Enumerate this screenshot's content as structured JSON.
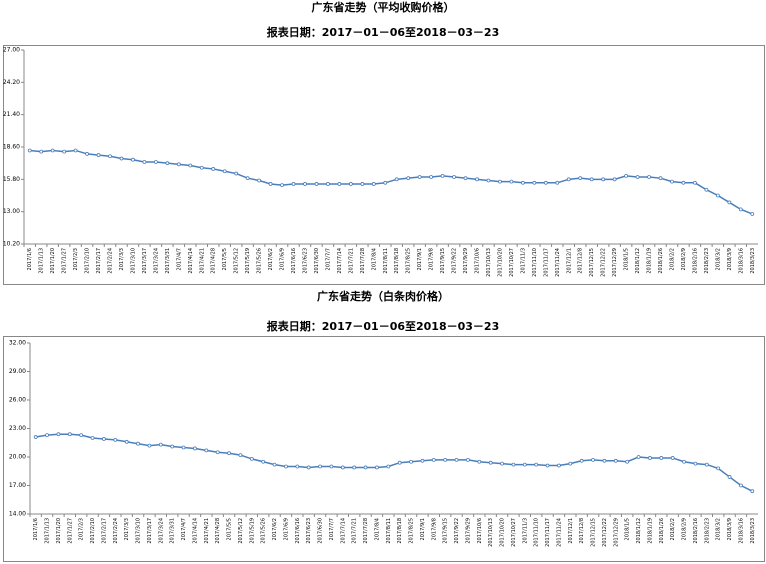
{
  "chart_data": [
    {
      "type": "line",
      "title": "广东省走势（平均收购价格）",
      "subtitle": "报表日期：2017－01－06至2018－03－23",
      "color": "#4a7ebb",
      "categories": [
        "2017/1/6",
        "2017/1/13",
        "2017/1/20",
        "2017/1/27",
        "2017/2/3",
        "2017/2/10",
        "2017/2/17",
        "2017/2/24",
        "2017/3/3",
        "2017/3/10",
        "2017/3/17",
        "2017/3/24",
        "2017/3/31",
        "2017/4/7",
        "2017/4/14",
        "2017/4/21",
        "2017/4/28",
        "2017/5/5",
        "2017/5/12",
        "2017/5/19",
        "2017/5/26",
        "2017/6/2",
        "2017/6/9",
        "2017/6/16",
        "2017/6/23",
        "2017/6/30",
        "2017/7/7",
        "2017/7/14",
        "2017/7/21",
        "2017/7/28",
        "2017/8/4",
        "2017/8/11",
        "2017/8/18",
        "2017/8/25",
        "2017/9/1",
        "2017/9/8",
        "2017/9/15",
        "2017/9/22",
        "2017/9/29",
        "2017/10/6",
        "2017/10/13",
        "2017/10/20",
        "2017/10/27",
        "2017/11/3",
        "2017/11/10",
        "2017/11/17",
        "2017/11/24",
        "2017/12/1",
        "2017/12/8",
        "2017/12/15",
        "2017/12/22",
        "2017/12/29",
        "2018/1/5",
        "2018/1/12",
        "2018/1/19",
        "2018/1/26",
        "2018/2/2",
        "2018/2/9",
        "2018/2/16",
        "2018/2/23",
        "2018/3/2",
        "2018/3/9",
        "2018/3/16",
        "2018/3/23"
      ],
      "values": [
        18.3,
        18.2,
        18.3,
        18.2,
        18.3,
        18.0,
        17.9,
        17.8,
        17.6,
        17.5,
        17.3,
        17.3,
        17.2,
        17.1,
        17.0,
        16.8,
        16.7,
        16.5,
        16.3,
        15.9,
        15.7,
        15.4,
        15.3,
        15.4,
        15.4,
        15.4,
        15.4,
        15.4,
        15.4,
        15.4,
        15.4,
        15.5,
        15.8,
        15.9,
        16.0,
        16.0,
        16.1,
        16.0,
        15.9,
        15.8,
        15.7,
        15.6,
        15.6,
        15.5,
        15.5,
        15.5,
        15.5,
        15.8,
        15.9,
        15.8,
        15.8,
        15.8,
        16.1,
        16.0,
        16.0,
        15.9,
        15.6,
        15.5,
        15.5,
        14.9,
        14.4,
        13.8,
        13.2,
        12.8
      ],
      "ylim": [
        10.2,
        27.0
      ],
      "yticks": [
        {
          "value": 10.2,
          "label": "10.20"
        },
        {
          "value": 13.0,
          "label": "13.00"
        },
        {
          "value": 15.8,
          "label": "15.80"
        },
        {
          "value": 18.6,
          "label": "18.60"
        },
        {
          "value": 21.4,
          "label": "21.40"
        },
        {
          "value": 24.2,
          "label": "24.20"
        },
        {
          "value": 27.0,
          "label": "27.00"
        }
      ]
    },
    {
      "type": "line",
      "title": "广东省走势（白条肉价格）",
      "subtitle": "报表日期：2017－01－06至2018－03－23",
      "color": "#4a7ebb",
      "categories": [
        "2017/1/6",
        "2017/1/13",
        "2017/1/20",
        "2017/1/27",
        "2017/2/3",
        "2017/2/10",
        "2017/2/17",
        "2017/2/24",
        "2017/3/3",
        "2017/3/10",
        "2017/3/17",
        "2017/3/24",
        "2017/3/31",
        "2017/4/7",
        "2017/4/14",
        "2017/4/21",
        "2017/4/28",
        "2017/5/5",
        "2017/5/12",
        "2017/5/19",
        "2017/5/26",
        "2017/6/2",
        "2017/6/9",
        "2017/6/16",
        "2017/6/23",
        "2017/6/30",
        "2017/7/7",
        "2017/7/14",
        "2017/7/21",
        "2017/7/28",
        "2017/8/4",
        "2017/8/11",
        "2017/8/18",
        "2017/8/25",
        "2017/9/1",
        "2017/9/8",
        "2017/9/15",
        "2017/9/22",
        "2017/9/29",
        "2017/10/6",
        "2017/10/13",
        "2017/10/20",
        "2017/10/27",
        "2017/11/3",
        "2017/11/10",
        "2017/11/17",
        "2017/11/24",
        "2017/12/1",
        "2017/12/8",
        "2017/12/15",
        "2017/12/22",
        "2017/12/29",
        "2018/1/5",
        "2018/1/12",
        "2018/1/19",
        "2018/1/26",
        "2018/2/2",
        "2018/2/9",
        "2018/2/16",
        "2018/2/23",
        "2018/3/2",
        "2018/3/9",
        "2018/3/16",
        "2018/3/23"
      ],
      "values": [
        22.1,
        22.3,
        22.4,
        22.4,
        22.3,
        22.0,
        21.9,
        21.8,
        21.6,
        21.4,
        21.2,
        21.3,
        21.1,
        21.0,
        20.9,
        20.7,
        20.5,
        20.4,
        20.2,
        19.8,
        19.5,
        19.2,
        19.0,
        19.0,
        18.9,
        19.0,
        19.0,
        18.9,
        18.9,
        18.9,
        18.9,
        19.0,
        19.4,
        19.5,
        19.6,
        19.7,
        19.7,
        19.7,
        19.7,
        19.5,
        19.4,
        19.3,
        19.2,
        19.2,
        19.2,
        19.1,
        19.1,
        19.3,
        19.6,
        19.7,
        19.6,
        19.6,
        19.5,
        20.0,
        19.9,
        19.9,
        19.9,
        19.5,
        19.3,
        19.2,
        18.8,
        17.9,
        17.0,
        16.4
      ],
      "ylim": [
        14.0,
        32.0
      ],
      "yticks": [
        {
          "value": 14.0,
          "label": "14.00"
        },
        {
          "value": 17.0,
          "label": "17.00"
        },
        {
          "value": 20.0,
          "label": "20.00"
        },
        {
          "value": 23.0,
          "label": "23.00"
        },
        {
          "value": 26.0,
          "label": "26.00"
        },
        {
          "value": 29.0,
          "label": "29.00"
        },
        {
          "value": 32.0,
          "label": "32.00"
        }
      ]
    }
  ]
}
